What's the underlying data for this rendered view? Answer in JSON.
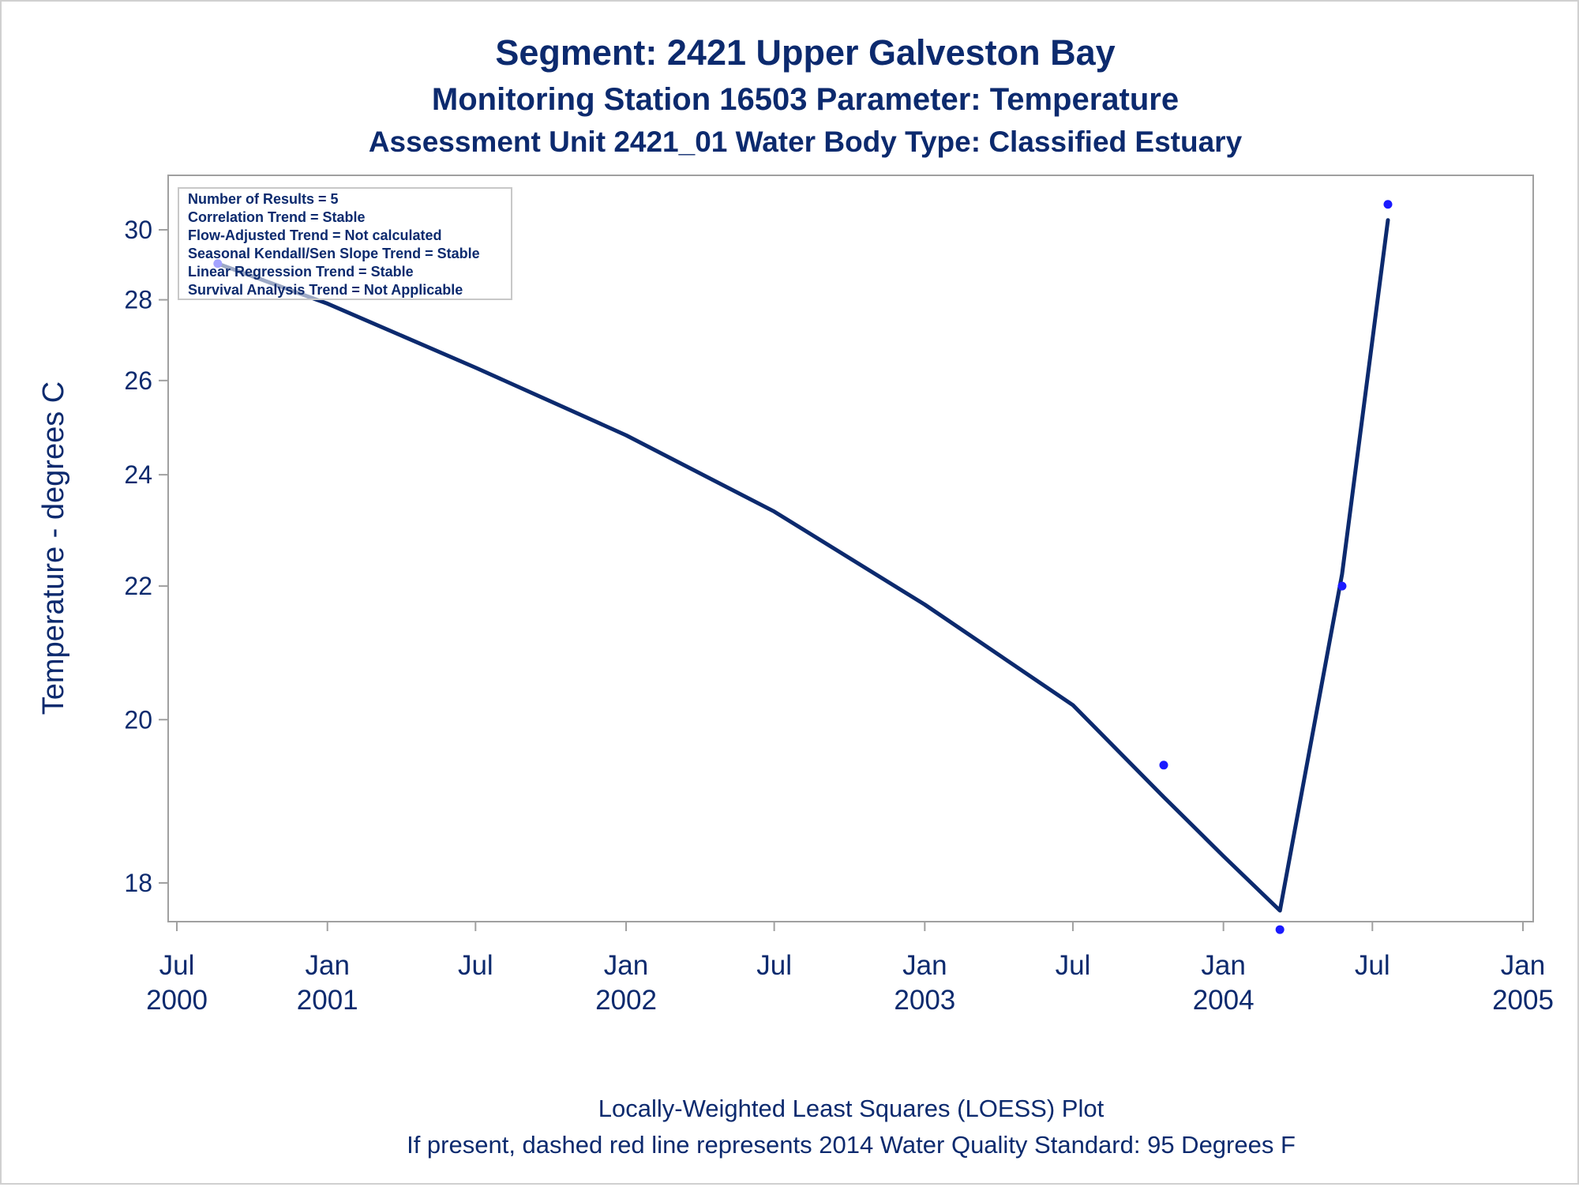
{
  "titles": {
    "line1": "Segment: 2421  Upper Galveston Bay",
    "line2": "Monitoring Station 16503 Parameter: Temperature",
    "line3": "Assessment Unit 2421_01   Water Body Type: Classified Estuary"
  },
  "footnotes": {
    "line1": "Locally-Weighted Least Squares (LOESS) Plot",
    "line2": "If present, dashed red line represents 2014 Water Quality Standard: 95   Degrees F"
  },
  "stats_box": [
    "Number of Results = 5",
    "Correlation Trend = Stable",
    "Flow-Adjusted Trend = Not calculated",
    "Seasonal Kendall/Sen Slope Trend = Stable",
    "Linear Regression Trend = Stable",
    "Survival Analysis Trend = Not Applicable"
  ],
  "colors": {
    "text": "#0c2a6e",
    "loess_line": "#0c2a6e",
    "points": "#1a1aff",
    "frame": "#a0a0a0"
  },
  "chart_data": {
    "type": "scatter",
    "title": "Segment: 2421  Upper Galveston Bay",
    "xlabel": "",
    "ylabel": "Temperature - degrees C",
    "x_type": "date",
    "xlim": [
      "2000-07-01",
      "2005-01-01"
    ],
    "y_scale": "reciprocal",
    "ylim": [
      17.5,
      31.2
    ],
    "y_ticks": [
      18,
      20,
      22,
      24,
      26,
      28,
      30
    ],
    "x_ticks": [
      {
        "date": "2000-07-01",
        "label": [
          "Jul",
          "2000"
        ]
      },
      {
        "date": "2001-01-01",
        "label": [
          "Jan",
          "2001"
        ]
      },
      {
        "date": "2001-07-01",
        "label": [
          "Jul",
          ""
        ]
      },
      {
        "date": "2002-01-01",
        "label": [
          "Jan",
          "2002"
        ]
      },
      {
        "date": "2002-07-01",
        "label": [
          "Jul",
          ""
        ]
      },
      {
        "date": "2003-01-01",
        "label": [
          "Jan",
          "2003"
        ]
      },
      {
        "date": "2003-07-01",
        "label": [
          "Jul",
          ""
        ]
      },
      {
        "date": "2004-01-01",
        "label": [
          "Jan",
          "2004"
        ]
      },
      {
        "date": "2004-07-01",
        "label": [
          "Jul",
          ""
        ]
      },
      {
        "date": "2005-01-01",
        "label": [
          "Jan",
          "2005"
        ]
      }
    ],
    "series": [
      {
        "type": "scatter",
        "points": [
          {
            "x": "2000-08-20",
            "y": 29.0
          },
          {
            "x": "2003-10-20",
            "y": 19.4
          },
          {
            "x": "2004-03-10",
            "y": 17.5
          },
          {
            "x": "2004-05-25",
            "y": 22.0
          },
          {
            "x": "2004-07-20",
            "y": 30.8
          }
        ]
      },
      {
        "type": "line",
        "points": [
          {
            "x": "2000-08-20",
            "y": 29.0
          },
          {
            "x": "2001-01-01",
            "y": 27.9
          },
          {
            "x": "2001-07-01",
            "y": 26.3
          },
          {
            "x": "2002-01-01",
            "y": 24.8
          },
          {
            "x": "2002-07-01",
            "y": 23.3
          },
          {
            "x": "2003-01-01",
            "y": 21.7
          },
          {
            "x": "2003-07-01",
            "y": 20.2
          },
          {
            "x": "2003-10-20",
            "y": 19.0
          },
          {
            "x": "2004-01-01",
            "y": 18.3
          },
          {
            "x": "2004-03-10",
            "y": 17.7
          },
          {
            "x": "2004-05-25",
            "y": 22.2
          },
          {
            "x": "2004-07-20",
            "y": 30.3
          }
        ]
      }
    ]
  }
}
